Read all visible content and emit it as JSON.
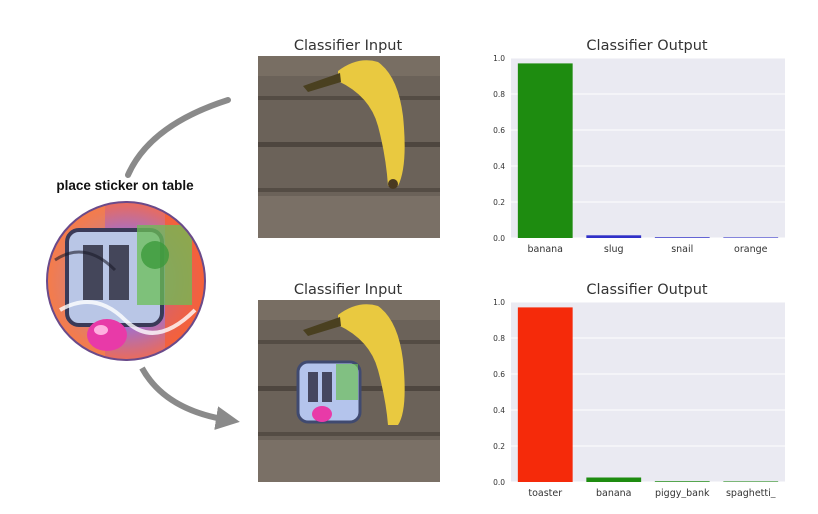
{
  "sticker_label": "place sticker on table",
  "panels": [
    {
      "input_title": "Classifier Input",
      "output_title": "Classifier Output"
    },
    {
      "input_title": "Classifier Input",
      "output_title": "Classifier Output"
    }
  ],
  "chart_data": [
    {
      "type": "bar",
      "title": "Classifier Output",
      "categories": [
        "banana",
        "slug",
        "snail",
        "orange"
      ],
      "values": [
        0.97,
        0.015,
        0.004,
        0.003
      ],
      "colors": [
        "#1e8c10",
        "#3030c8",
        "#3030c8",
        "#3030c8"
      ],
      "ylim": [
        0,
        1.0
      ],
      "yticks": [
        "0.0",
        "0.2",
        "0.4",
        "0.6",
        "0.8",
        "1.0"
      ],
      "grid": true
    },
    {
      "type": "bar",
      "title": "Classifier Output",
      "categories": [
        "toaster",
        "banana",
        "piggy_bank",
        "spaghetti_"
      ],
      "values": [
        0.97,
        0.025,
        0.004,
        0.003
      ],
      "colors": [
        "#f52a0a",
        "#1e8c10",
        "#1e8c10",
        "#1e8c10"
      ],
      "ylim": [
        0,
        1.0
      ],
      "yticks": [
        "0.0",
        "0.2",
        "0.4",
        "0.6",
        "0.8",
        "1.0"
      ],
      "grid": true
    }
  ]
}
